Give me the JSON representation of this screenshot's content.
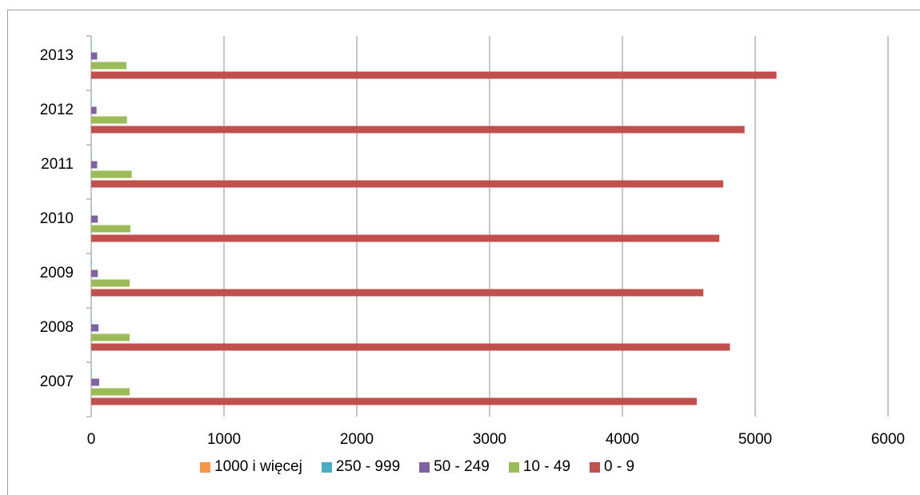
{
  "chart_data": {
    "type": "bar",
    "orientation": "horizontal",
    "title": "",
    "xlabel": "",
    "ylabel": "",
    "categories": [
      "2007",
      "2008",
      "2009",
      "2010",
      "2011",
      "2012",
      "2013"
    ],
    "xlim": [
      0,
      6000
    ],
    "xticks": [
      "0",
      "1000",
      "2000",
      "3000",
      "4000",
      "5000",
      "6000"
    ],
    "grid": "vertical",
    "legend_position": "bottom",
    "series": [
      {
        "name": "1000 i więcej",
        "color": "#f79646",
        "values": [
          0,
          0,
          0,
          0,
          0,
          0,
          0
        ]
      },
      {
        "name": "250 - 999",
        "color": "#4bacc6",
        "values": [
          4,
          4,
          4,
          4,
          4,
          4,
          4
        ]
      },
      {
        "name": "50 - 249",
        "color": "#8064a2",
        "values": [
          60,
          55,
          50,
          50,
          45,
          40,
          45
        ]
      },
      {
        "name": "10 - 49",
        "color": "#9bbb59",
        "values": [
          290,
          290,
          290,
          295,
          305,
          270,
          265
        ]
      },
      {
        "name": "0 - 9",
        "color": "#c0504d",
        "values": [
          4560,
          4810,
          4610,
          4730,
          4760,
          4920,
          5160
        ]
      }
    ]
  }
}
